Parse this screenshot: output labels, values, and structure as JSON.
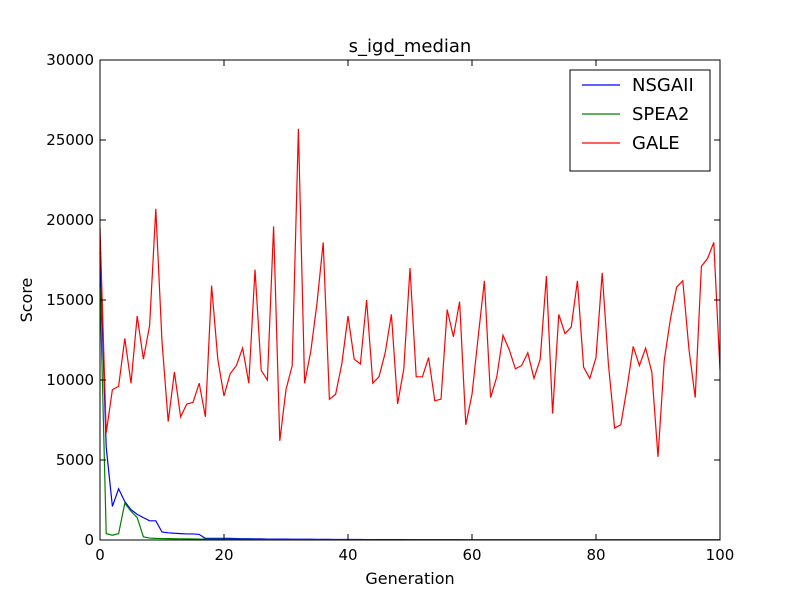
{
  "chart_data": {
    "type": "line",
    "title": "s_igd_median",
    "xlabel": "Generation",
    "ylabel": "Score",
    "xlim": [
      0,
      100
    ],
    "ylim": [
      0,
      30000
    ],
    "xticks": [
      0,
      20,
      40,
      60,
      80,
      100
    ],
    "yticks": [
      0,
      5000,
      10000,
      15000,
      20000,
      25000,
      30000
    ],
    "grid": false,
    "legend_position": "top-right",
    "series": [
      {
        "name": "NSGAII",
        "color": "#0000ff",
        "x": [
          0,
          1,
          2,
          3,
          4,
          5,
          6,
          7,
          8,
          9,
          10,
          11,
          12,
          13,
          14,
          15,
          16,
          17,
          18,
          19,
          20,
          21,
          22,
          23,
          24,
          25,
          26,
          27,
          28,
          29,
          30,
          31,
          32,
          33,
          34,
          35,
          36,
          37,
          38,
          39,
          40,
          41,
          42,
          43,
          44,
          45,
          46,
          47,
          48,
          49,
          50,
          51,
          52,
          53,
          54,
          55,
          56,
          57,
          58,
          59,
          60,
          61,
          62,
          63,
          64,
          65,
          66,
          67,
          68,
          69,
          70,
          71,
          72,
          73,
          74,
          75,
          76,
          77,
          78,
          79,
          80,
          81,
          82,
          83,
          84,
          85,
          86,
          87,
          88,
          89,
          90,
          91,
          92,
          93,
          94,
          95,
          96,
          97,
          98,
          99,
          100
        ],
        "values": [
          18000,
          5800,
          2100,
          3200,
          2400,
          1900,
          1600,
          1400,
          1200,
          1200,
          500,
          450,
          420,
          400,
          380,
          380,
          350,
          100,
          100,
          100,
          100,
          100,
          90,
          80,
          80,
          70,
          70,
          60,
          60,
          55,
          55,
          50,
          50,
          45,
          45,
          40,
          40,
          38,
          36,
          34,
          32,
          30,
          30,
          28,
          26,
          25,
          24,
          23,
          22,
          21,
          20,
          19,
          18,
          17,
          16,
          15,
          15,
          14,
          14,
          13,
          13,
          12,
          12,
          12,
          11,
          11,
          11,
          10,
          10,
          10,
          10,
          10,
          10,
          10,
          10,
          10,
          10,
          10,
          10,
          10,
          10,
          10,
          10,
          10,
          10,
          10,
          10,
          10,
          10,
          10,
          10,
          10,
          10,
          10,
          10,
          10,
          10,
          10,
          10,
          10,
          10
        ]
      },
      {
        "name": "SPEA2",
        "color": "#008000",
        "x": [
          0,
          1,
          2,
          3,
          4,
          5,
          6,
          7,
          8,
          9,
          10,
          11,
          12,
          13,
          14,
          15,
          16,
          17,
          18,
          19,
          20,
          21,
          22,
          23,
          24,
          25,
          26,
          27,
          28,
          29,
          30,
          31,
          32,
          33,
          34,
          35,
          36,
          37,
          38,
          39,
          40,
          41,
          42,
          43,
          44,
          45,
          46,
          47,
          48,
          49,
          50,
          51,
          52,
          53,
          54,
          55,
          56,
          57,
          58,
          59,
          60,
          61,
          62,
          63,
          64,
          65,
          66,
          67,
          68,
          69,
          70,
          71,
          72,
          73,
          74,
          75,
          76,
          77,
          78,
          79,
          80,
          81,
          82,
          83,
          84,
          85,
          86,
          87,
          88,
          89,
          90,
          91,
          92,
          93,
          94,
          95,
          96,
          97,
          98,
          99,
          100
        ],
        "values": [
          16000,
          400,
          300,
          400,
          2300,
          1800,
          1400,
          200,
          120,
          100,
          90,
          85,
          80,
          75,
          70,
          65,
          60,
          55,
          50,
          48,
          46,
          44,
          42,
          40,
          38,
          36,
          34,
          32,
          30,
          28,
          26,
          25,
          24,
          23,
          22,
          21,
          20,
          19,
          18,
          17,
          16,
          15,
          15,
          14,
          14,
          13,
          13,
          12,
          12,
          11,
          11,
          10,
          10,
          10,
          10,
          10,
          10,
          10,
          10,
          10,
          10,
          10,
          10,
          10,
          10,
          10,
          10,
          10,
          10,
          10,
          10,
          10,
          10,
          10,
          10,
          10,
          10,
          10,
          10,
          10,
          10,
          10,
          10,
          10,
          10,
          10,
          10,
          10,
          10,
          10,
          10,
          10,
          10,
          10,
          10,
          10,
          10,
          10,
          10,
          10,
          10
        ]
      },
      {
        "name": "GALE",
        "color": "#ff0000",
        "x": [
          0,
          1,
          2,
          3,
          4,
          5,
          6,
          7,
          8,
          9,
          10,
          11,
          12,
          13,
          14,
          15,
          16,
          17,
          18,
          19,
          20,
          21,
          22,
          23,
          24,
          25,
          26,
          27,
          28,
          29,
          30,
          31,
          32,
          33,
          34,
          35,
          36,
          37,
          38,
          39,
          40,
          41,
          42,
          43,
          44,
          45,
          46,
          47,
          48,
          49,
          50,
          51,
          52,
          53,
          54,
          55,
          56,
          57,
          58,
          59,
          60,
          61,
          62,
          63,
          64,
          65,
          66,
          67,
          68,
          69,
          70,
          71,
          72,
          73,
          74,
          75,
          76,
          77,
          78,
          79,
          80,
          81,
          82,
          83,
          84,
          85,
          86,
          87,
          88,
          89,
          90,
          91,
          92,
          93,
          94,
          95,
          96,
          97,
          98,
          99,
          100
        ],
        "values": [
          19500,
          6700,
          9400,
          9600,
          12600,
          9800,
          14000,
          11300,
          13400,
          20700,
          12400,
          7400,
          10500,
          7700,
          8500,
          8600,
          9800,
          7700,
          15900,
          11300,
          9000,
          10400,
          10900,
          12000,
          9800,
          16900,
          10600,
          10000,
          19600,
          6200,
          9400,
          10900,
          25700,
          9800,
          11800,
          14800,
          18600,
          8800,
          9100,
          11000,
          14000,
          11300,
          11000,
          15000,
          9800,
          10200,
          11700,
          14100,
          8500,
          10700,
          17000,
          10200,
          10200,
          11400,
          8700,
          8800,
          14400,
          12700,
          14900,
          7200,
          9100,
          12700,
          16200,
          8900,
          10200,
          12800,
          11900,
          10700,
          10900,
          11700,
          10100,
          11300,
          16500,
          7900,
          14100,
          12900,
          13300,
          16200,
          10800,
          10100,
          11400,
          16700,
          11000,
          7000,
          7200,
          9500,
          12100,
          10900,
          12000,
          10500,
          5200,
          11200,
          13800,
          15800,
          16200,
          11900,
          8900,
          17100,
          17600,
          18600,
          10600
        ]
      }
    ]
  }
}
